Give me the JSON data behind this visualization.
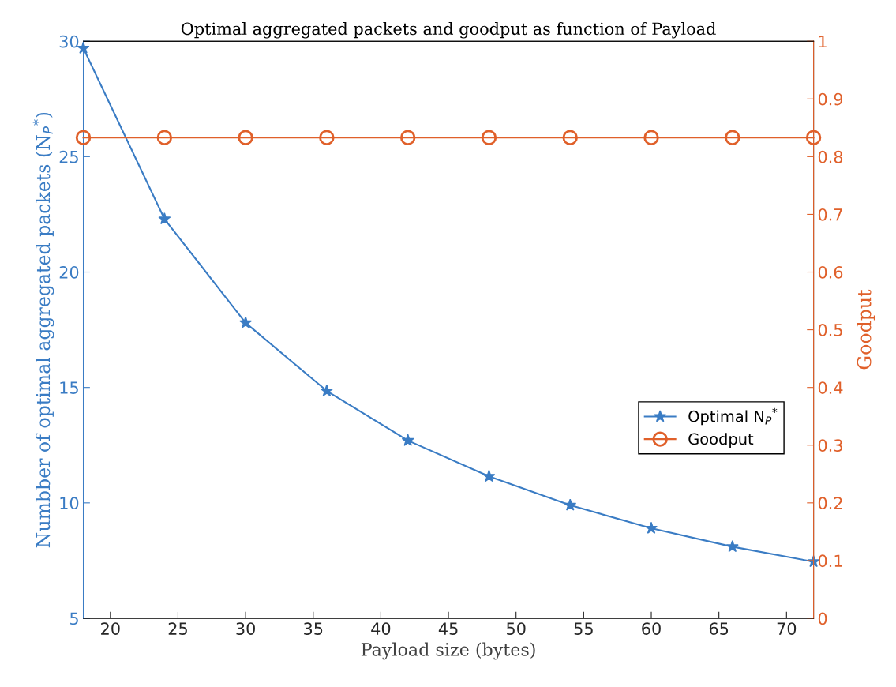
{
  "chart_data": {
    "type": "line",
    "title": "Optimal aggregated packets and goodput as function of Payload",
    "xlabel": "Payload size (bytes)",
    "ylabel": "Numbber of optimal aggregated packets (N$_{P}$$^{*}$)",
    "y2label": "Goodput",
    "x": [
      18,
      24,
      30,
      36,
      42,
      48,
      54,
      60,
      66,
      72
    ],
    "series": [
      {
        "name": "Optimal N$_{P}$$^{*}$",
        "color": "#3a7cc4",
        "marker": "star",
        "values": [
          29.7,
          22.3,
          17.8,
          14.85,
          12.7,
          11.15,
          9.9,
          8.9,
          8.1,
          7.45
        ]
      },
      {
        "name": "Goodput",
        "color": "#e0602a",
        "marker": "circle",
        "axis": "y2",
        "values": [
          0.833,
          0.833,
          0.833,
          0.833,
          0.833,
          0.833,
          0.833,
          0.833,
          0.833,
          0.833
        ]
      }
    ],
    "xlim": [
      18,
      72
    ],
    "xticks": [
      20,
      25,
      30,
      35,
      40,
      45,
      50,
      55,
      60,
      65,
      70
    ],
    "ylim": [
      5,
      30
    ],
    "yticks": [
      5,
      10,
      15,
      20,
      25,
      30
    ],
    "y2lim": [
      0,
      1
    ],
    "y2ticks": [
      0,
      {
        "value": 0.1,
        "label": "0.1"
      },
      {
        "value": 0.2,
        "label": "0.2"
      },
      {
        "value": 0.3,
        "label": "0.3"
      },
      {
        "value": 0.4,
        "label": "0.4"
      },
      {
        "value": 0.5,
        "label": "0.5"
      },
      {
        "value": 0.6,
        "label": "0.6"
      },
      {
        "value": 0.7,
        "label": "0.7"
      },
      {
        "value": 0.8,
        "label": "0.8"
      },
      {
        "value": 0.9,
        "label": "0.9"
      },
      1
    ],
    "grid": false,
    "legend": "right",
    "line_style": "solid"
  }
}
